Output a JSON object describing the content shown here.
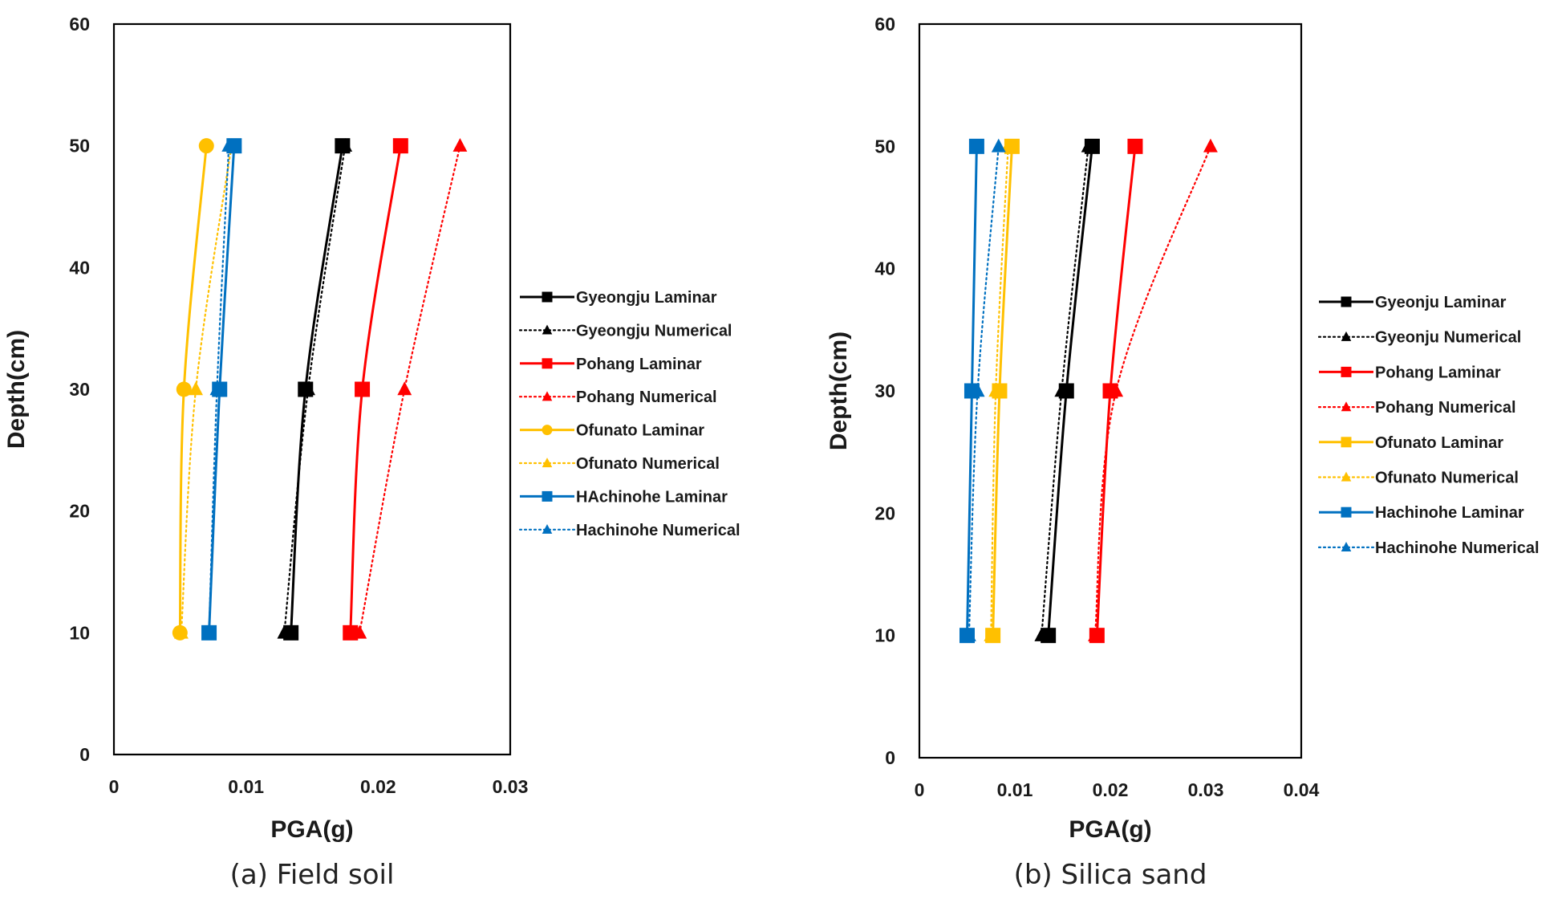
{
  "chart_data": [
    {
      "type": "line",
      "caption": "(a) Field soil",
      "xlabel": "PGA(g)",
      "ylabel": "Depth(cm)",
      "xlim": [
        0,
        0.03
      ],
      "ylim": [
        0,
        60
      ],
      "xticks": [
        0,
        0.01,
        0.02,
        0.03
      ],
      "xtick_labels": [
        "0",
        "0.01",
        "0.02",
        "0.03"
      ],
      "yticks": [
        0,
        10,
        20,
        30,
        40,
        50,
        60
      ],
      "ytick_labels": [
        "0",
        "10",
        "20",
        "30",
        "40",
        "50",
        "60"
      ],
      "legend_position": "right",
      "series": [
        {
          "name": "Gyeongju Laminar",
          "color": "#000000",
          "dash": "solid",
          "marker": "square",
          "x": [
            0.0134,
            0.0145,
            0.0173
          ],
          "y": [
            10,
            30,
            50
          ]
        },
        {
          "name": "Gyeongju Numerical",
          "color": "#000000",
          "dash": "dotted",
          "marker": "triangle",
          "x": [
            0.0129,
            0.0147,
            0.0175
          ],
          "y": [
            10,
            30,
            50
          ]
        },
        {
          "name": "Pohang Laminar",
          "color": "#ff0000",
          "dash": "solid",
          "marker": "square",
          "x": [
            0.0179,
            0.0188,
            0.0217
          ],
          "y": [
            10,
            30,
            50
          ]
        },
        {
          "name": "Pohang Numerical",
          "color": "#ff0000",
          "dash": "dotted",
          "marker": "triangle",
          "x": [
            0.0186,
            0.022,
            0.0262
          ],
          "y": [
            10,
            30,
            50
          ]
        },
        {
          "name": "Ofunato Laminar",
          "color": "#ffc000",
          "dash": "solid",
          "marker": "circle",
          "x": [
            0.005,
            0.0053,
            0.007
          ],
          "y": [
            10,
            30,
            50
          ]
        },
        {
          "name": "Ofunato Numerical",
          "color": "#ffc000",
          "dash": "dotted",
          "marker": "triangle",
          "x": [
            0.0051,
            0.0062,
            0.0089
          ],
          "y": [
            10,
            30,
            50
          ]
        },
        {
          "name": "HAchinohe Laminar",
          "color": "#0070c0",
          "dash": "solid",
          "marker": "square",
          "x": [
            0.0072,
            0.008,
            0.0091
          ],
          "y": [
            10,
            30,
            50
          ]
        },
        {
          "name": "Hachinohe Numerical",
          "color": "#0070c0",
          "dash": "dotted",
          "marker": "triangle",
          "x": [
            0.0072,
            0.0078,
            0.0087
          ],
          "y": [
            10,
            30,
            50
          ]
        }
      ]
    },
    {
      "type": "line",
      "caption": "(b) Silica sand",
      "xlabel": "PGA(g)",
      "ylabel": "Depth(cm)",
      "xlim": [
        0,
        0.04
      ],
      "ylim": [
        0,
        60
      ],
      "xticks": [
        0,
        0.01,
        0.02,
        0.03,
        0.04
      ],
      "xtick_labels": [
        "0",
        "0.01",
        "0.02",
        "0.03",
        "0.04"
      ],
      "yticks": [
        0,
        10,
        20,
        30,
        40,
        50,
        60
      ],
      "ytick_labels": [
        "0",
        "10",
        "20",
        "30",
        "40",
        "50",
        "60"
      ],
      "legend_position": "right",
      "series": [
        {
          "name": "Gyeonju Laminar",
          "color": "#000000",
          "dash": "solid",
          "marker": "square",
          "x": [
            0.0135,
            0.0154,
            0.0181
          ],
          "y": [
            10,
            30,
            50
          ]
        },
        {
          "name": "Gyeonju Numerical",
          "color": "#000000",
          "dash": "dotted",
          "marker": "triangle",
          "x": [
            0.0128,
            0.0149,
            0.0177
          ],
          "y": [
            10,
            30,
            50
          ]
        },
        {
          "name": "Pohang Laminar",
          "color": "#ff0000",
          "dash": "solid",
          "marker": "square",
          "x": [
            0.0186,
            0.02,
            0.0226
          ],
          "y": [
            10,
            30,
            50
          ]
        },
        {
          "name": "Pohang Numerical",
          "color": "#ff0000",
          "dash": "dotted",
          "marker": "triangle",
          "x": [
            0.0184,
            0.0206,
            0.0305
          ],
          "y": [
            10,
            30,
            50
          ]
        },
        {
          "name": "Ofunato Laminar",
          "color": "#ffc000",
          "dash": "solid",
          "marker": "square",
          "x": [
            0.0077,
            0.0084,
            0.0097
          ],
          "y": [
            10,
            30,
            50
          ]
        },
        {
          "name": "Ofunato Numerical",
          "color": "#ffc000",
          "dash": "dotted",
          "marker": "triangle",
          "x": [
            0.0075,
            0.008,
            0.0093
          ],
          "y": [
            10,
            30,
            50
          ]
        },
        {
          "name": "Hachinohe Laminar",
          "color": "#0070c0",
          "dash": "solid",
          "marker": "square",
          "x": [
            0.005,
            0.0055,
            0.006
          ],
          "y": [
            10,
            30,
            50
          ]
        },
        {
          "name": "Hachinohe Numerical",
          "color": "#0070c0",
          "dash": "dotted",
          "marker": "triangle",
          "x": [
            0.0052,
            0.0061,
            0.0083
          ],
          "y": [
            10,
            30,
            50
          ]
        }
      ]
    }
  ]
}
